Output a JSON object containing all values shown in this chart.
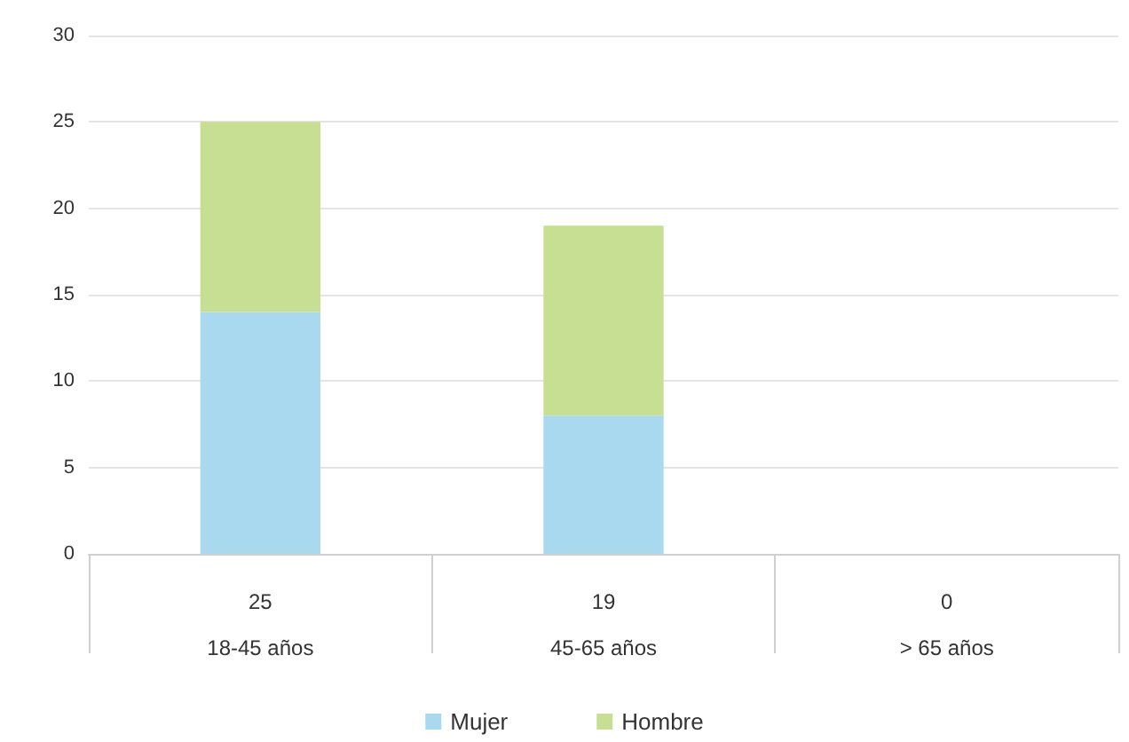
{
  "chart_data": {
    "type": "bar",
    "stacked": true,
    "categories": [
      "18-45 años",
      "45-65 años",
      "> 65 años"
    ],
    "series": [
      {
        "name": "Mujer",
        "color": "#a9d9ef",
        "values": [
          14,
          8,
          0
        ]
      },
      {
        "name": "Hombre",
        "color": "#c6df92",
        "values": [
          11,
          11,
          0
        ]
      }
    ],
    "totals": [
      "25",
      "19",
      "0"
    ],
    "ylim": [
      0,
      30
    ],
    "yticks": [
      0,
      5,
      10,
      15,
      20,
      25,
      30
    ],
    "grid": "y",
    "legend": "bottom"
  }
}
